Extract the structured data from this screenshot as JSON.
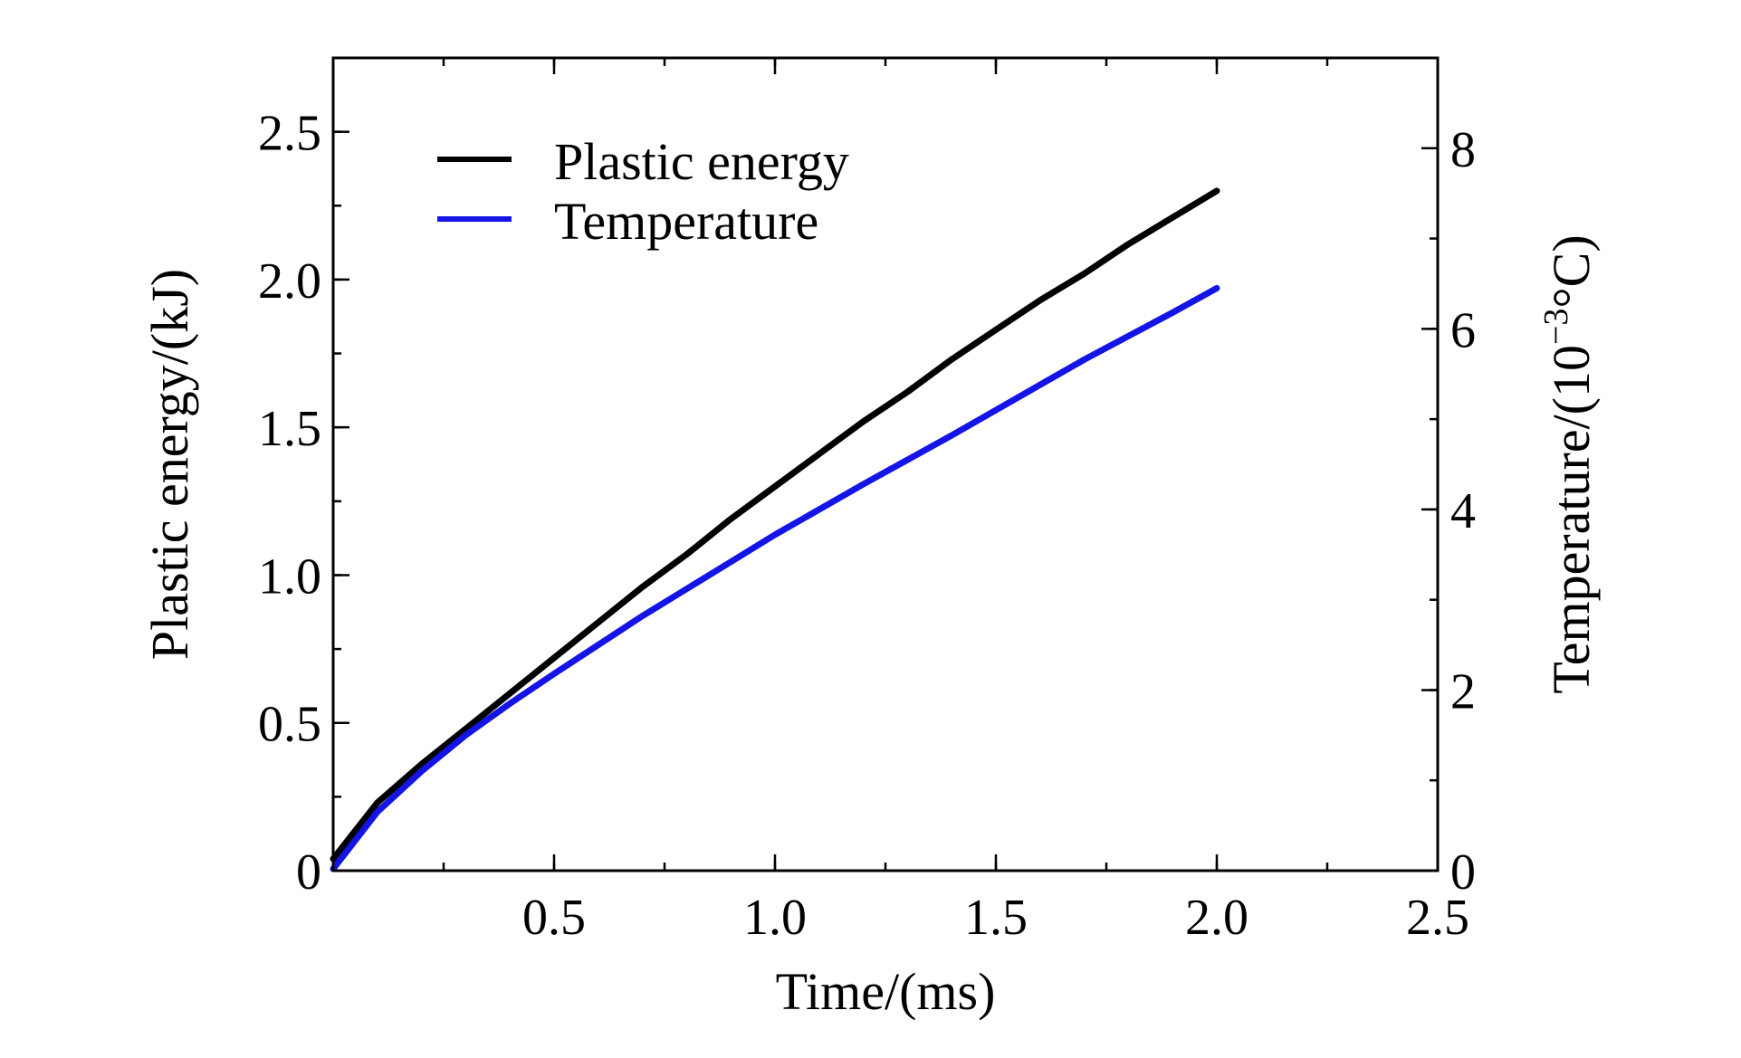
{
  "chart_data": {
    "type": "line",
    "title": "",
    "xlabel": "Time/(ms)",
    "ylabel": "Plastic energy/(kJ)",
    "y2label": "Temperature/(10",
    "y2label_exponent": "−3",
    "y2label_unit": "°C)",
    "xlim": [
      0,
      2.5
    ],
    "ylim": [
      0,
      2.75
    ],
    "y2lim": [
      0,
      9
    ],
    "x_ticks": [
      {
        "value": 0.5,
        "label": "0.5"
      },
      {
        "value": 1.0,
        "label": "1.0"
      },
      {
        "value": 1.5,
        "label": "1.5"
      },
      {
        "value": 2.0,
        "label": "2.0"
      },
      {
        "value": 2.5,
        "label": "2.5"
      }
    ],
    "y_ticks": [
      {
        "value": 0,
        "label": "0"
      },
      {
        "value": 0.5,
        "label": "0.5"
      },
      {
        "value": 1.0,
        "label": "1.0"
      },
      {
        "value": 1.5,
        "label": "1.5"
      },
      {
        "value": 2.0,
        "label": "2.0"
      },
      {
        "value": 2.5,
        "label": "2.5"
      }
    ],
    "y2_ticks": [
      {
        "value": 0,
        "label": "0"
      },
      {
        "value": 2,
        "label": "2"
      },
      {
        "value": 4,
        "label": "4"
      },
      {
        "value": 6,
        "label": "6"
      },
      {
        "value": 8,
        "label": "8"
      }
    ],
    "x_minor_step": 0.25,
    "y_minor_step": 0.25,
    "y2_minor_step": 1,
    "legend_position": "top-left",
    "series": [
      {
        "name": "Plastic energy",
        "color": "#000000",
        "axis": "left",
        "x": [
          0,
          0.1,
          0.2,
          0.3,
          0.4,
          0.5,
          0.6,
          0.7,
          0.8,
          0.9,
          1.0,
          1.1,
          1.2,
          1.3,
          1.4,
          1.5,
          1.6,
          1.7,
          1.8,
          1.9,
          2.0
        ],
        "y": [
          0.04,
          0.23,
          0.36,
          0.48,
          0.6,
          0.72,
          0.84,
          0.96,
          1.07,
          1.19,
          1.3,
          1.41,
          1.52,
          1.62,
          1.73,
          1.83,
          1.93,
          2.02,
          2.12,
          2.21,
          2.3
        ]
      },
      {
        "name": "Temperature",
        "color": "#1414e6",
        "axis": "right",
        "x": [
          0,
          0.1,
          0.2,
          0.3,
          0.4,
          0.5,
          0.6,
          0.7,
          0.8,
          0.9,
          1.0,
          1.1,
          1.2,
          1.3,
          1.4,
          1.5,
          1.6,
          1.7,
          1.8,
          1.9,
          2.0
        ],
        "y": [
          0.02,
          0.65,
          1.1,
          1.5,
          1.85,
          2.18,
          2.5,
          2.82,
          3.12,
          3.42,
          3.72,
          4.0,
          4.28,
          4.55,
          4.82,
          5.1,
          5.38,
          5.66,
          5.92,
          6.18,
          6.45
        ]
      }
    ]
  }
}
